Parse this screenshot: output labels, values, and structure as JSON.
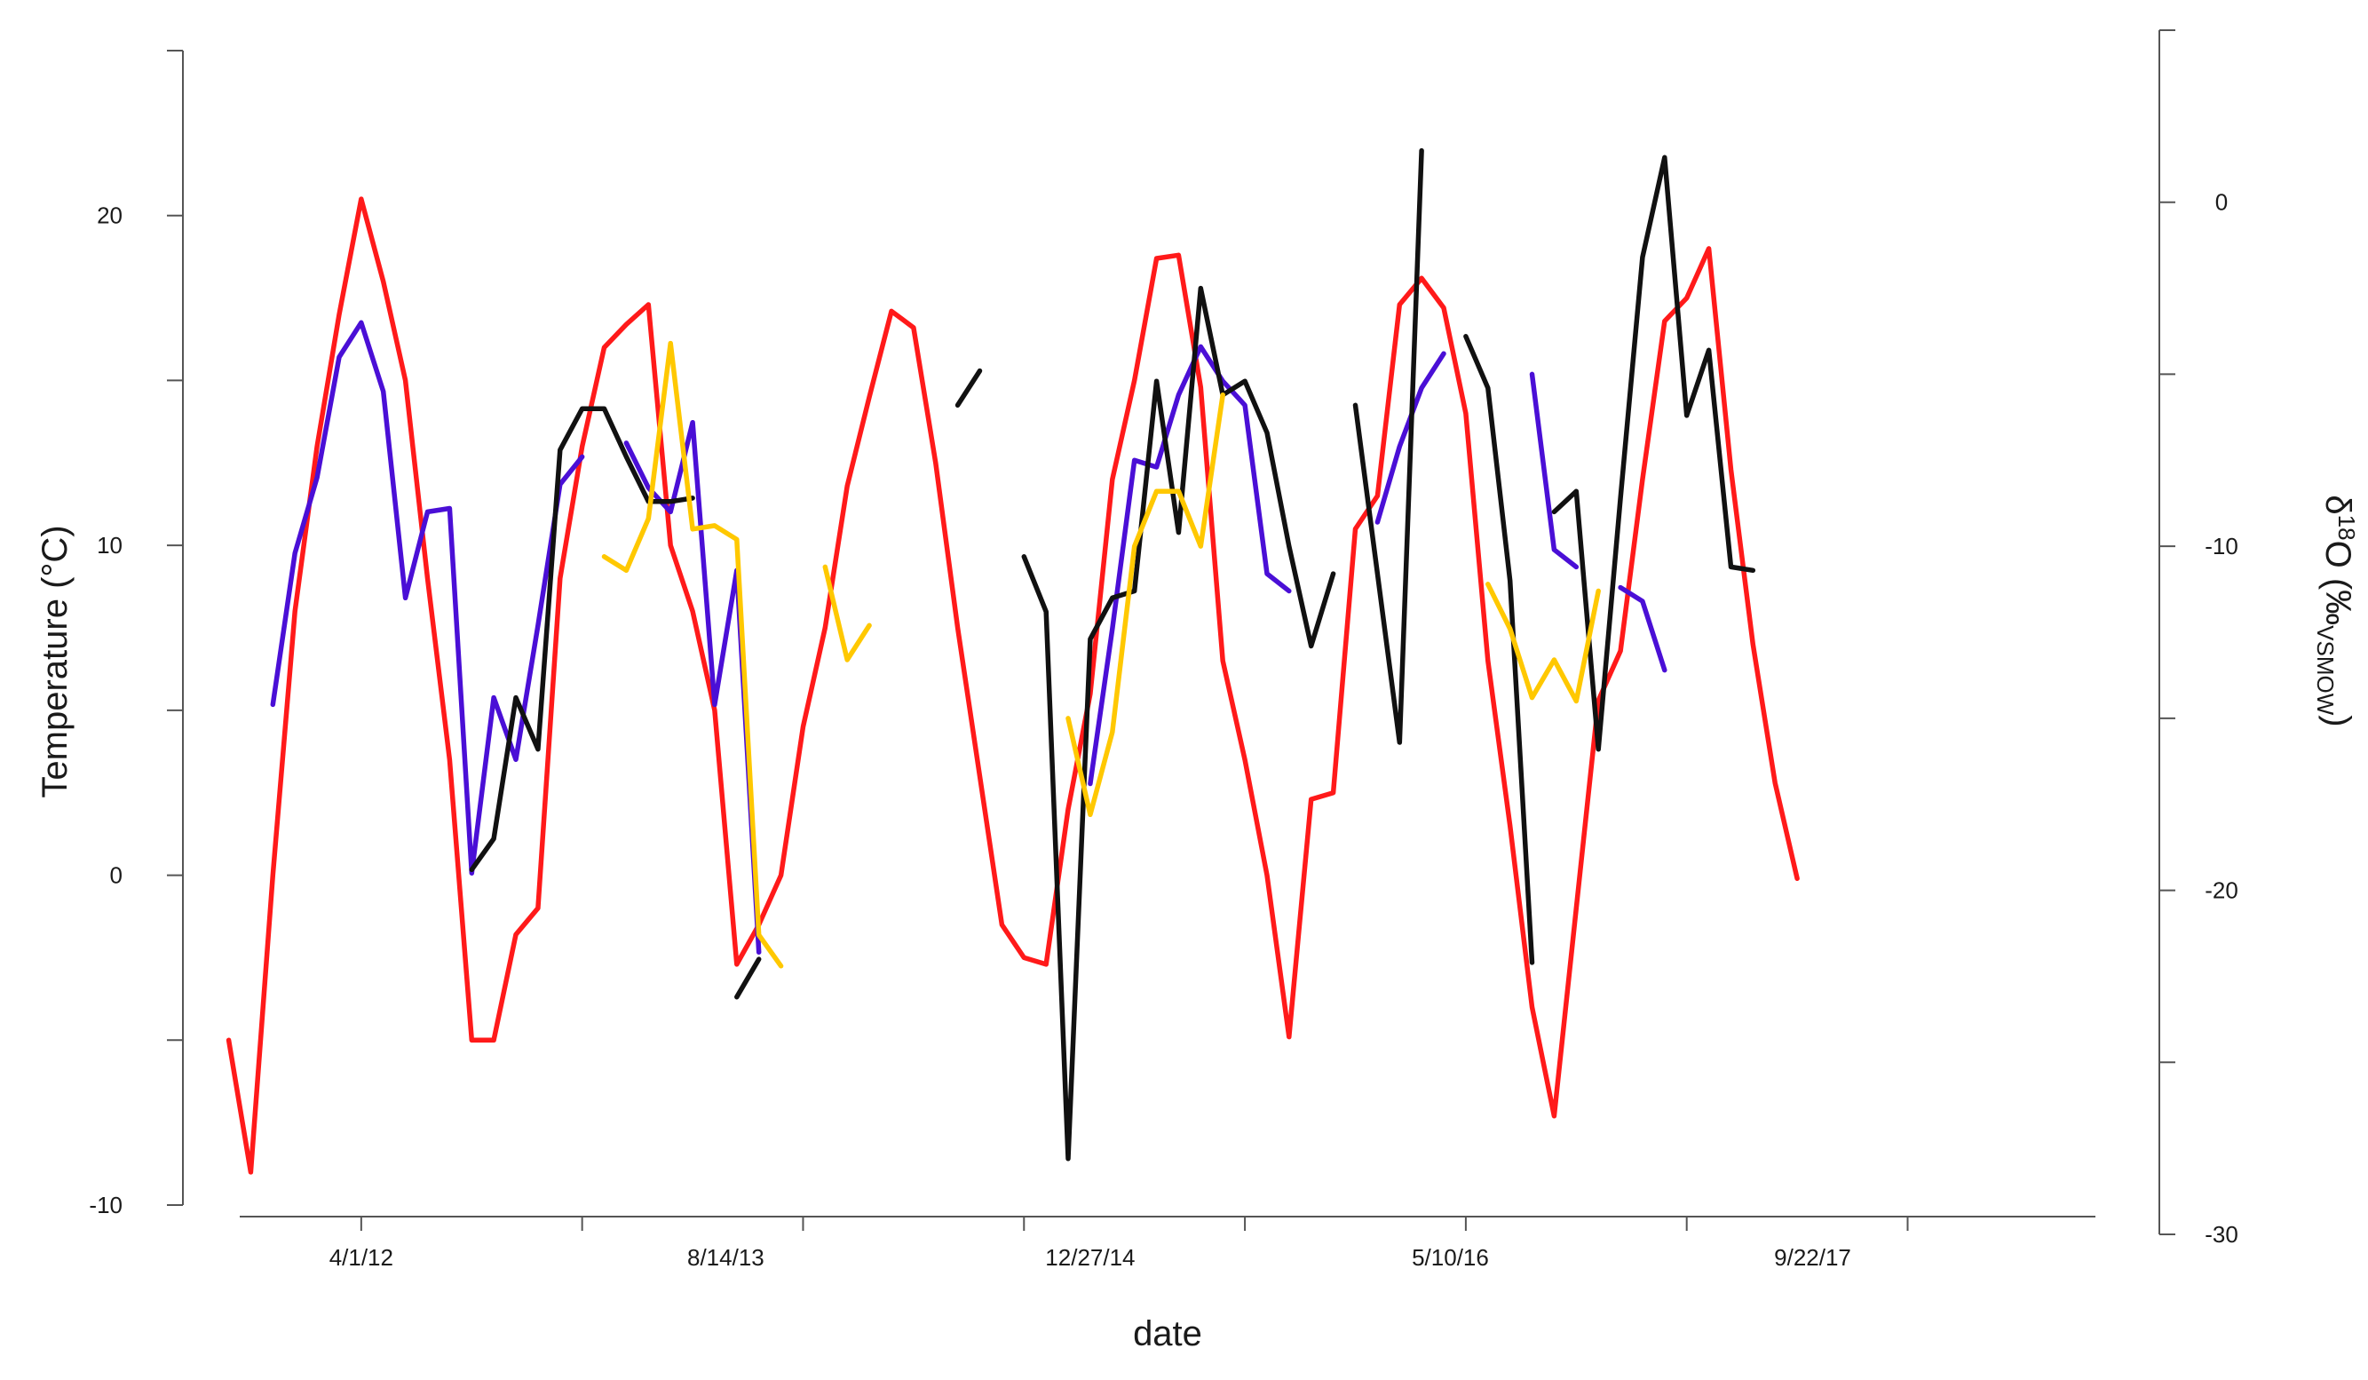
{
  "chart_data": {
    "type": "line",
    "title": "",
    "xlabel": "date",
    "ylabel_left": "Temperature (°C)",
    "ylabel_right_parts": [
      "δ",
      "18",
      "O (‰",
      "VSMOW",
      ")"
    ],
    "x_unit": "months since 1/1/2012",
    "xlim": [
      -2.5,
      81.5
    ],
    "ylim_left": [
      -10,
      25
    ],
    "ylim_right": [
      -30,
      5
    ],
    "x_tick_positions": [
      3,
      13,
      23,
      33,
      43,
      53,
      63,
      73,
      83
    ],
    "x_tick_labels": [
      {
        "x": 3,
        "label": "4/1/12"
      },
      {
        "x": 19.5,
        "label": "8/14/13"
      },
      {
        "x": 36,
        "label": "12/27/14"
      },
      {
        "x": 52.3,
        "label": "5/10/16"
      },
      {
        "x": 68.7,
        "label": "9/22/17"
      }
    ],
    "y_left_ticks": [
      -10,
      0,
      10,
      20
    ],
    "y_left_tick_labels": [
      "-10",
      "0",
      "10",
      "20"
    ],
    "y_left_minor_ticks": [
      -5,
      5,
      15,
      25
    ],
    "y_right_ticks": [
      -30,
      -20,
      -10,
      0
    ],
    "y_right_tick_labels": [
      "-30",
      "-20",
      "-10",
      "0"
    ],
    "y_right_minor_ticks": [
      -25,
      -15,
      -5,
      5
    ],
    "series": [
      {
        "name": "temperature",
        "axis": "left",
        "color": "#ff1a1a",
        "points": [
          [
            -3,
            -5
          ],
          [
            -2,
            -9
          ],
          [
            -1,
            0
          ],
          [
            0,
            8
          ],
          [
            1,
            13
          ],
          [
            2,
            17
          ],
          [
            3,
            20.5
          ],
          [
            4,
            18
          ],
          [
            5,
            15
          ],
          [
            6,
            9
          ],
          [
            7,
            3.5
          ],
          [
            8,
            -5
          ],
          [
            9,
            -5
          ],
          [
            10,
            -1.8
          ],
          [
            11,
            -1
          ],
          [
            12,
            9
          ],
          [
            13,
            13
          ],
          [
            14,
            16
          ],
          [
            15,
            16.7
          ],
          [
            16,
            17.3
          ],
          [
            17,
            10
          ],
          [
            18,
            8
          ],
          [
            19,
            5
          ],
          [
            20,
            -2.7
          ],
          [
            21,
            -1.5
          ],
          [
            22,
            0
          ],
          [
            23,
            4.5
          ],
          [
            24,
            7.5
          ],
          [
            25,
            11.8
          ],
          [
            26,
            14.5
          ],
          [
            27,
            17.1
          ],
          [
            28,
            16.6
          ],
          [
            29,
            12.5
          ],
          [
            30,
            7.5
          ],
          [
            31,
            3
          ],
          [
            32,
            -1.5
          ],
          [
            33,
            -2.5
          ],
          [
            34,
            -2.7
          ],
          [
            35,
            2
          ],
          [
            36,
            5.5
          ],
          [
            37,
            12
          ],
          [
            38,
            15
          ],
          [
            39,
            18.7
          ],
          [
            40,
            18.8
          ],
          [
            41,
            14.8
          ],
          [
            42,
            6.5
          ],
          [
            43,
            3.5
          ],
          [
            44,
            0
          ],
          [
            45,
            -4.9
          ],
          [
            46,
            2.3
          ],
          [
            47,
            2.5
          ],
          [
            48,
            10.5
          ],
          [
            49,
            11.5
          ],
          [
            50,
            17.3
          ],
          [
            51,
            18.1
          ],
          [
            52,
            17.2
          ],
          [
            53,
            14
          ],
          [
            54,
            6.5
          ],
          [
            55,
            1.5
          ],
          [
            56,
            -4
          ],
          [
            57,
            -7.3
          ],
          [
            58,
            -1
          ],
          [
            59,
            5.3
          ],
          [
            60,
            6.8
          ],
          [
            61,
            12
          ],
          [
            62,
            16.8
          ],
          [
            63,
            17.5
          ],
          [
            64,
            19
          ],
          [
            65,
            12.3
          ],
          [
            66,
            7
          ],
          [
            67,
            2.8
          ],
          [
            68,
            -0.1
          ]
        ]
      },
      {
        "name": "isotope_purple",
        "axis": "right",
        "color": "#4a0fd6",
        "segments": [
          [
            [
              -1,
              -14.6
            ],
            [
              0,
              -10.2
            ],
            [
              1,
              -8
            ],
            [
              2,
              -4.5
            ],
            [
              3,
              -3.5
            ],
            [
              4,
              -5.5
            ],
            [
              5,
              -11.5
            ],
            [
              6,
              -9
            ],
            [
              7,
              -8.9
            ],
            [
              8,
              -19.5
            ],
            [
              9,
              -14.4
            ],
            [
              10,
              -16.2
            ],
            [
              11,
              -12.3
            ],
            [
              12,
              -8.2
            ],
            [
              13,
              -7.4
            ]
          ],
          [
            [
              15,
              -7
            ],
            [
              16,
              -8.3
            ],
            [
              17,
              -9
            ],
            [
              18,
              -6.4
            ],
            [
              19,
              -14.6
            ],
            [
              20,
              -10.7
            ],
            [
              21,
              -21.8
            ]
          ],
          [
            [
              36,
              -16.9
            ],
            [
              37,
              -12.4
            ],
            [
              38,
              -7.5
            ],
            [
              39,
              -7.7
            ],
            [
              40,
              -5.6
            ],
            [
              41,
              -4.2
            ],
            [
              42,
              -5.2
            ],
            [
              43,
              -5.9
            ],
            [
              44,
              -10.8
            ],
            [
              45,
              -11.3
            ]
          ],
          [
            [
              49,
              -9.3
            ],
            [
              50,
              -7.1
            ],
            [
              51,
              -5.4
            ],
            [
              52,
              -4.4
            ]
          ],
          [
            [
              56,
              -5
            ],
            [
              57,
              -10.1
            ],
            [
              58,
              -10.6
            ]
          ],
          [
            [
              60,
              -11.2
            ],
            [
              61,
              -11.6
            ],
            [
              62,
              -13.6
            ]
          ]
        ]
      },
      {
        "name": "isotope_black",
        "axis": "right",
        "color": "#111111",
        "segments": [
          [
            [
              8,
              -19.4
            ],
            [
              9,
              -18.5
            ],
            [
              10,
              -14.4
            ],
            [
              11,
              -15.9
            ],
            [
              12,
              -7.2
            ],
            [
              13,
              -6
            ],
            [
              14,
              -6
            ],
            [
              15,
              -7.4
            ],
            [
              16,
              -8.7
            ],
            [
              17,
              -8.7
            ],
            [
              18,
              -8.6
            ]
          ],
          [
            [
              20,
              -23.1
            ],
            [
              21,
              -22
            ]
          ],
          [
            [
              30,
              -5.9
            ],
            [
              31,
              -4.9
            ]
          ],
          [
            [
              33,
              -10.3
            ],
            [
              34,
              -11.9
            ],
            [
              35,
              -27.8
            ],
            [
              36,
              -12.7
            ],
            [
              37,
              -11.5
            ],
            [
              38,
              -11.3
            ],
            [
              39,
              -5.2
            ],
            [
              40,
              -9.6
            ],
            [
              41,
              -2.5
            ],
            [
              42,
              -5.6
            ],
            [
              43,
              -5.2
            ],
            [
              44,
              -6.7
            ],
            [
              45,
              -10
            ],
            [
              46,
              -12.9
            ],
            [
              47,
              -10.8
            ]
          ],
          [
            [
              48,
              -5.9
            ],
            [
              50,
              -15.7
            ],
            [
              51,
              1.5
            ]
          ],
          [
            [
              53,
              -3.9
            ],
            [
              54,
              -5.4
            ],
            [
              55,
              -11
            ],
            [
              56,
              -22.1
            ]
          ],
          [
            [
              57,
              -9
            ],
            [
              58,
              -8.4
            ],
            [
              59,
              -15.9
            ],
            [
              60,
              -8.6
            ],
            [
              61,
              -1.6
            ],
            [
              62,
              1.3
            ],
            [
              63,
              -6.2
            ],
            [
              64,
              -4.3
            ],
            [
              65,
              -10.6
            ],
            [
              66,
              -10.7
            ]
          ]
        ]
      },
      {
        "name": "isotope_yellow",
        "axis": "right",
        "color": "#ffc800",
        "segments": [
          [
            [
              14,
              -10.3
            ],
            [
              15,
              -10.7
            ],
            [
              16,
              -9.2
            ],
            [
              17,
              -4.1
            ],
            [
              18,
              -9.5
            ],
            [
              19,
              -9.4
            ],
            [
              20,
              -9.8
            ],
            [
              21,
              -21.3
            ],
            [
              22,
              -22.2
            ]
          ],
          [
            [
              24,
              -10.6
            ],
            [
              25,
              -13.3
            ],
            [
              26,
              -12.3
            ]
          ],
          [
            [
              35,
              -15
            ],
            [
              36,
              -17.8
            ],
            [
              37,
              -15.4
            ],
            [
              38,
              -10
            ],
            [
              39,
              -8.4
            ],
            [
              40,
              -8.4
            ],
            [
              41,
              -10
            ],
            [
              42,
              -5.6
            ]
          ],
          [
            [
              54,
              -11.1
            ],
            [
              55,
              -12.4
            ],
            [
              56,
              -14.4
            ],
            [
              57,
              -13.3
            ],
            [
              58,
              -14.5
            ],
            [
              59,
              -11.3
            ]
          ]
        ]
      }
    ]
  }
}
